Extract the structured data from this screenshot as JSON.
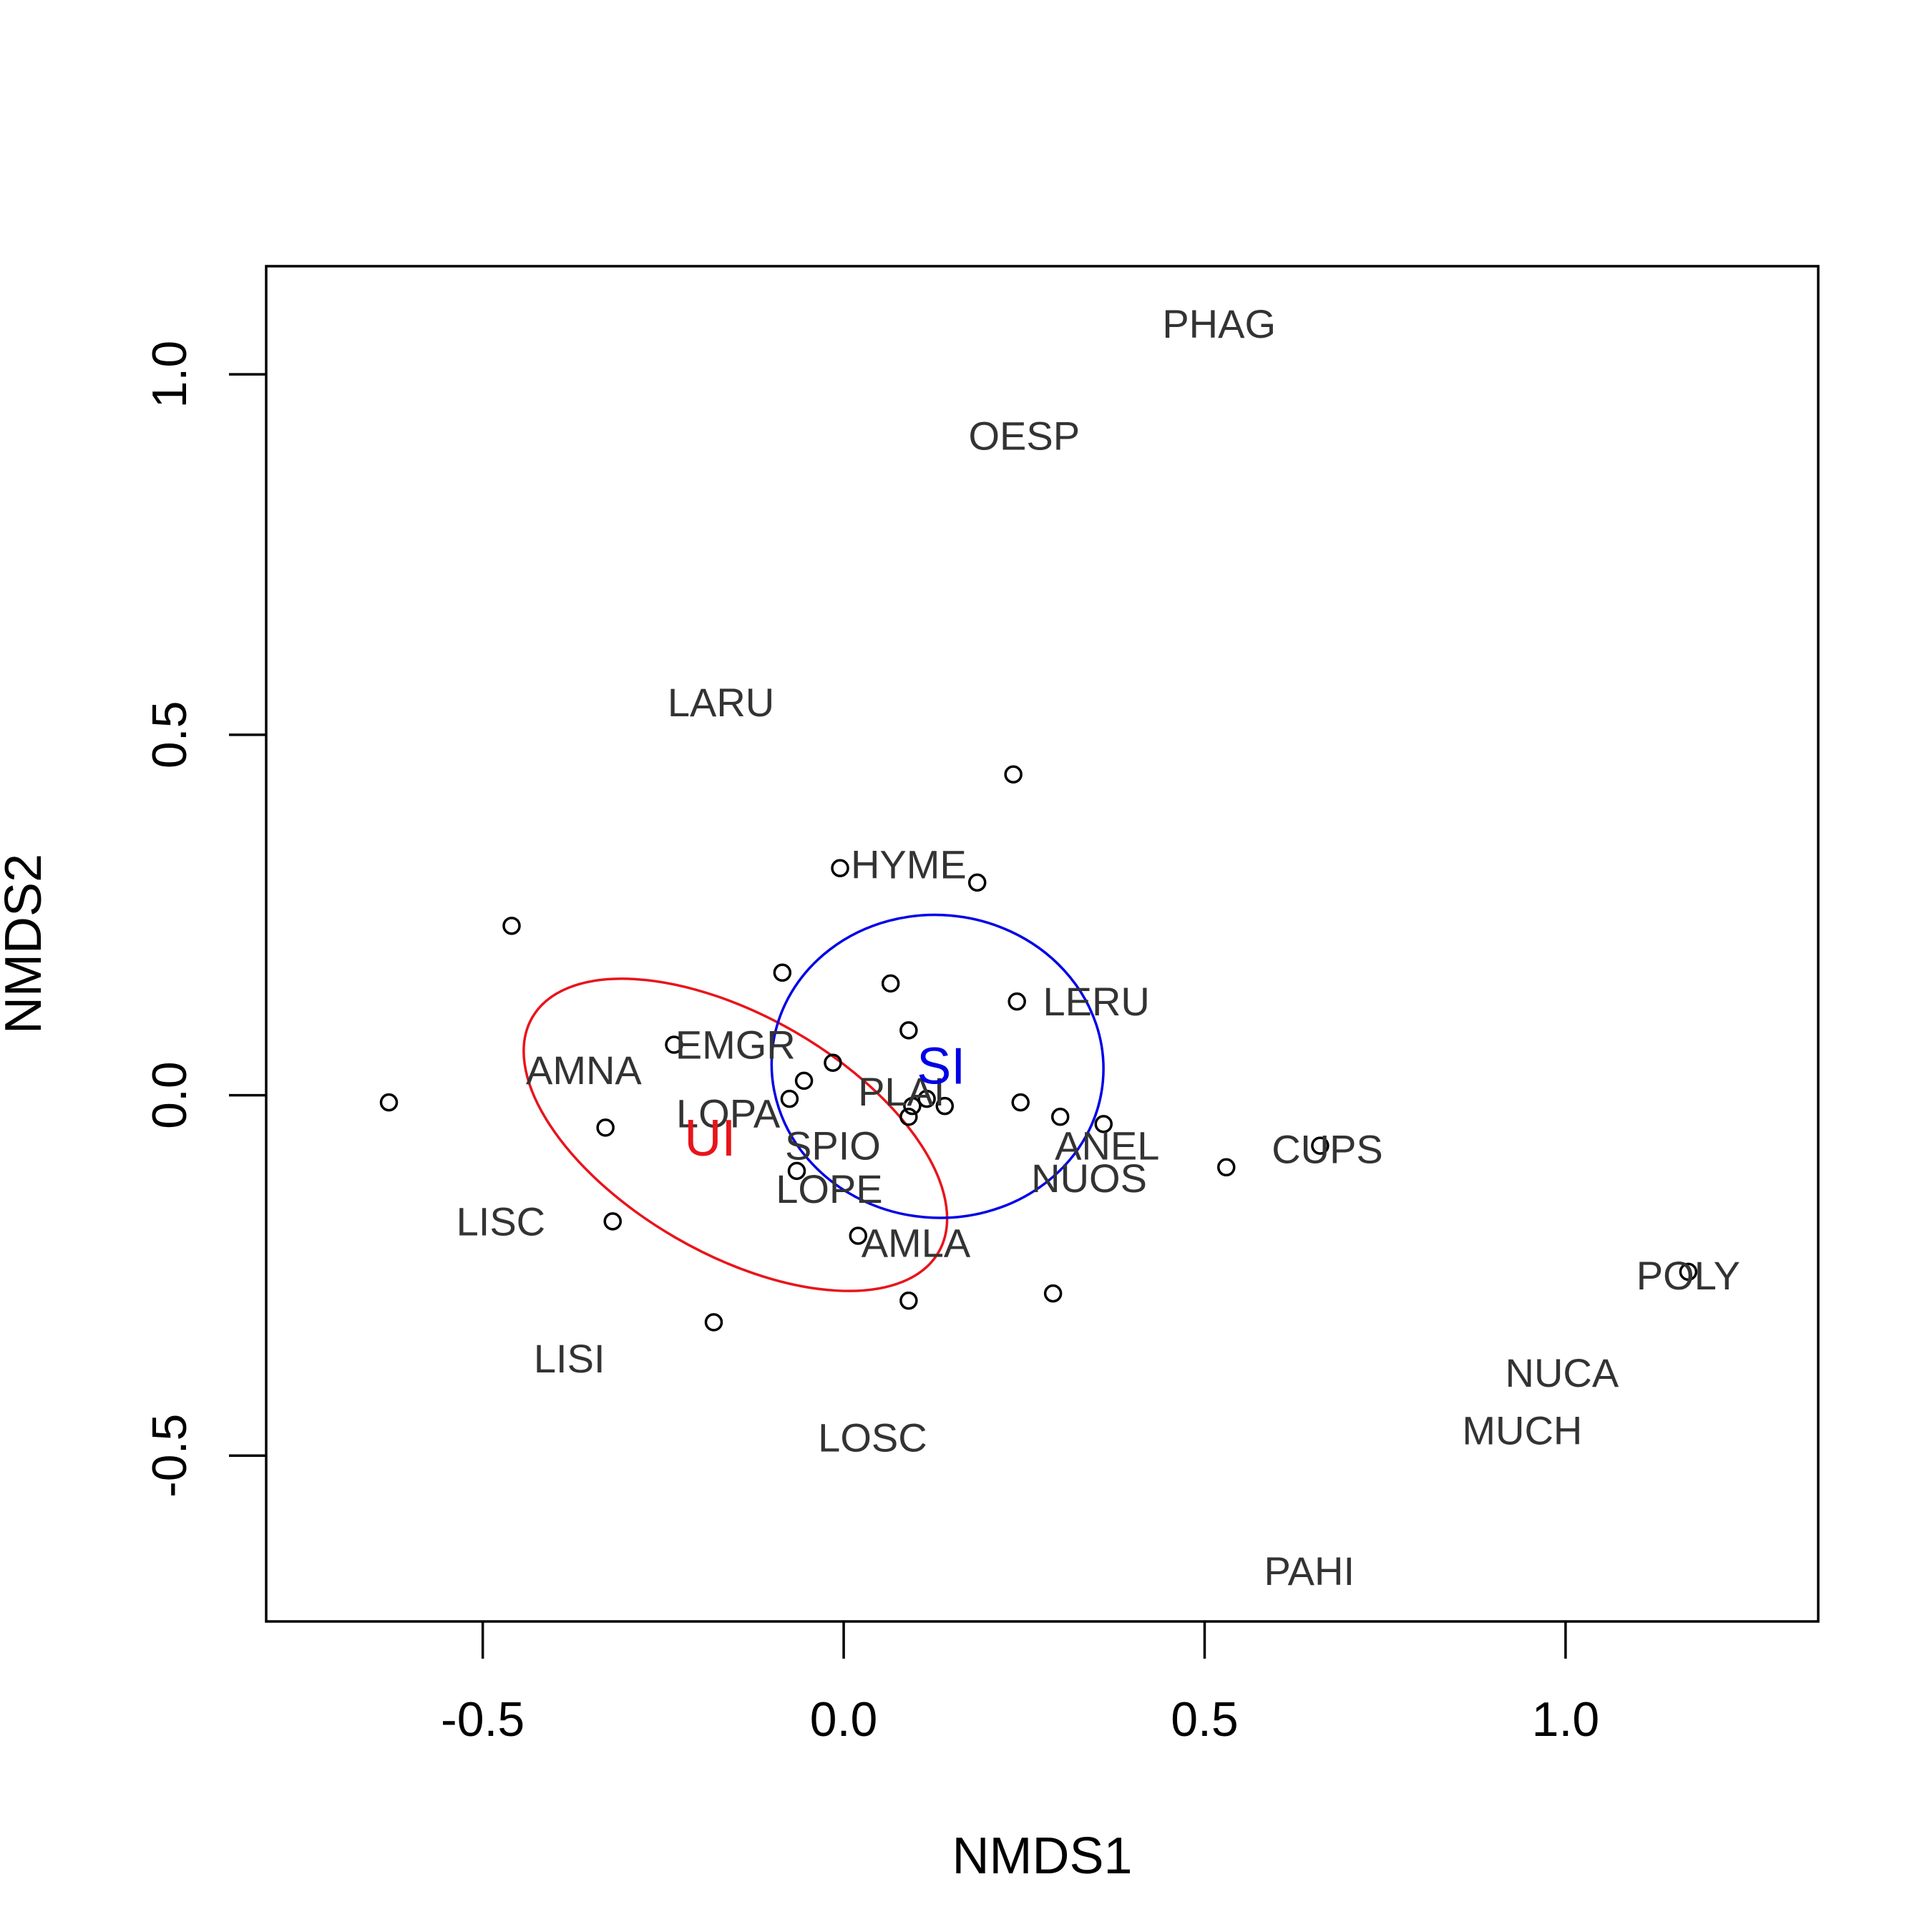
{
  "chart_data": {
    "type": "scatter",
    "title": "",
    "xlabel": "NMDS1",
    "ylabel": "NMDS2",
    "xlim": [
      -0.8,
      1.35
    ],
    "ylim": [
      -0.73,
      1.15
    ],
    "x_ticks": [
      -0.5,
      0.0,
      0.5,
      1.0
    ],
    "x_tick_labels": [
      "-0.5",
      "0.0",
      "0.5",
      "1.0"
    ],
    "y_ticks": [
      -0.5,
      0.0,
      0.5,
      1.0
    ],
    "y_tick_labels": [
      "-0.5",
      "0.0",
      "0.5",
      "1.0"
    ],
    "grid": false,
    "legend": "none",
    "sites": [
      {
        "x": -0.63,
        "y": -0.01
      },
      {
        "x": -0.46,
        "y": 0.235
      },
      {
        "x": -0.33,
        "y": -0.045
      },
      {
        "x": -0.32,
        "y": -0.175
      },
      {
        "x": -0.235,
        "y": 0.07
      },
      {
        "x": -0.18,
        "y": -0.315
      },
      {
        "x": -0.085,
        "y": 0.17
      },
      {
        "x": -0.075,
        "y": -0.005
      },
      {
        "x": -0.065,
        "y": -0.105
      },
      {
        "x": -0.055,
        "y": 0.02
      },
      {
        "x": -0.015,
        "y": 0.045
      },
      {
        "x": -0.005,
        "y": 0.315
      },
      {
        "x": 0.02,
        "y": -0.195
      },
      {
        "x": 0.065,
        "y": 0.155
      },
      {
        "x": 0.09,
        "y": 0.09
      },
      {
        "x": 0.09,
        "y": -0.03
      },
      {
        "x": 0.095,
        "y": -0.015
      },
      {
        "x": 0.09,
        "y": -0.285
      },
      {
        "x": 0.115,
        "y": -0.005
      },
      {
        "x": 0.14,
        "y": -0.015
      },
      {
        "x": 0.185,
        "y": 0.295
      },
      {
        "x": 0.235,
        "y": 0.445
      },
      {
        "x": 0.24,
        "y": 0.13
      },
      {
        "x": 0.245,
        "y": -0.01
      },
      {
        "x": 0.29,
        "y": -0.275
      },
      {
        "x": 0.3,
        "y": -0.03
      },
      {
        "x": 0.36,
        "y": -0.04
      },
      {
        "x": 0.53,
        "y": -0.1
      },
      {
        "x": 0.66,
        "y": -0.07
      },
      {
        "x": 1.17,
        "y": -0.245
      }
    ],
    "species": [
      {
        "label": "PHAG",
        "x": 0.52,
        "y": 1.07
      },
      {
        "label": "OESP",
        "x": 0.25,
        "y": 0.915
      },
      {
        "label": "LARU",
        "x": -0.17,
        "y": 0.545
      },
      {
        "label": "HYME",
        "x": 0.09,
        "y": 0.32
      },
      {
        "label": "LERU",
        "x": 0.35,
        "y": 0.13
      },
      {
        "label": "EMGR",
        "x": -0.15,
        "y": 0.07
      },
      {
        "label": "AMNA",
        "x": -0.36,
        "y": 0.035
      },
      {
        "label": "PLAI",
        "x": 0.08,
        "y": 0.005
      },
      {
        "label": "LOPA",
        "x": -0.16,
        "y": -0.025
      },
      {
        "label": "SPIO",
        "x": -0.015,
        "y": -0.07
      },
      {
        "label": "ANEL",
        "x": 0.365,
        "y": -0.07
      },
      {
        "label": "CUPS",
        "x": 0.67,
        "y": -0.075
      },
      {
        "label": "NUOS",
        "x": 0.34,
        "y": -0.115
      },
      {
        "label": "LOPE",
        "x": -0.02,
        "y": -0.13
      },
      {
        "label": "LISC",
        "x": -0.475,
        "y": -0.175
      },
      {
        "label": "AMLA",
        "x": 0.1,
        "y": -0.205
      },
      {
        "label": "POLY",
        "x": 1.17,
        "y": -0.25
      },
      {
        "label": "NUCA",
        "x": 0.995,
        "y": -0.385
      },
      {
        "label": "LISI",
        "x": -0.38,
        "y": -0.365
      },
      {
        "label": "MUCH",
        "x": 0.94,
        "y": -0.465
      },
      {
        "label": "LOSC",
        "x": 0.04,
        "y": -0.475
      },
      {
        "label": "PAHI",
        "x": 0.645,
        "y": -0.66
      }
    ],
    "groups": [
      {
        "label": "UI",
        "color": "#e8141b",
        "center_x": -0.185,
        "center_y": -0.06,
        "ellipse_color": "#e8141b",
        "ellipse_cx": -0.15,
        "ellipse_cy": -0.055,
        "ellipse_a": 0.325,
        "ellipse_b": 0.165,
        "ellipse_angle_deg": -30
      },
      {
        "label": "SI",
        "color": "#0000e6",
        "center_x": 0.135,
        "center_y": 0.04,
        "ellipse_color": "#0000e6",
        "ellipse_cx": 0.13,
        "ellipse_cy": 0.04,
        "ellipse_a": 0.23,
        "ellipse_b": 0.21,
        "ellipse_angle_deg": -5
      }
    ]
  }
}
